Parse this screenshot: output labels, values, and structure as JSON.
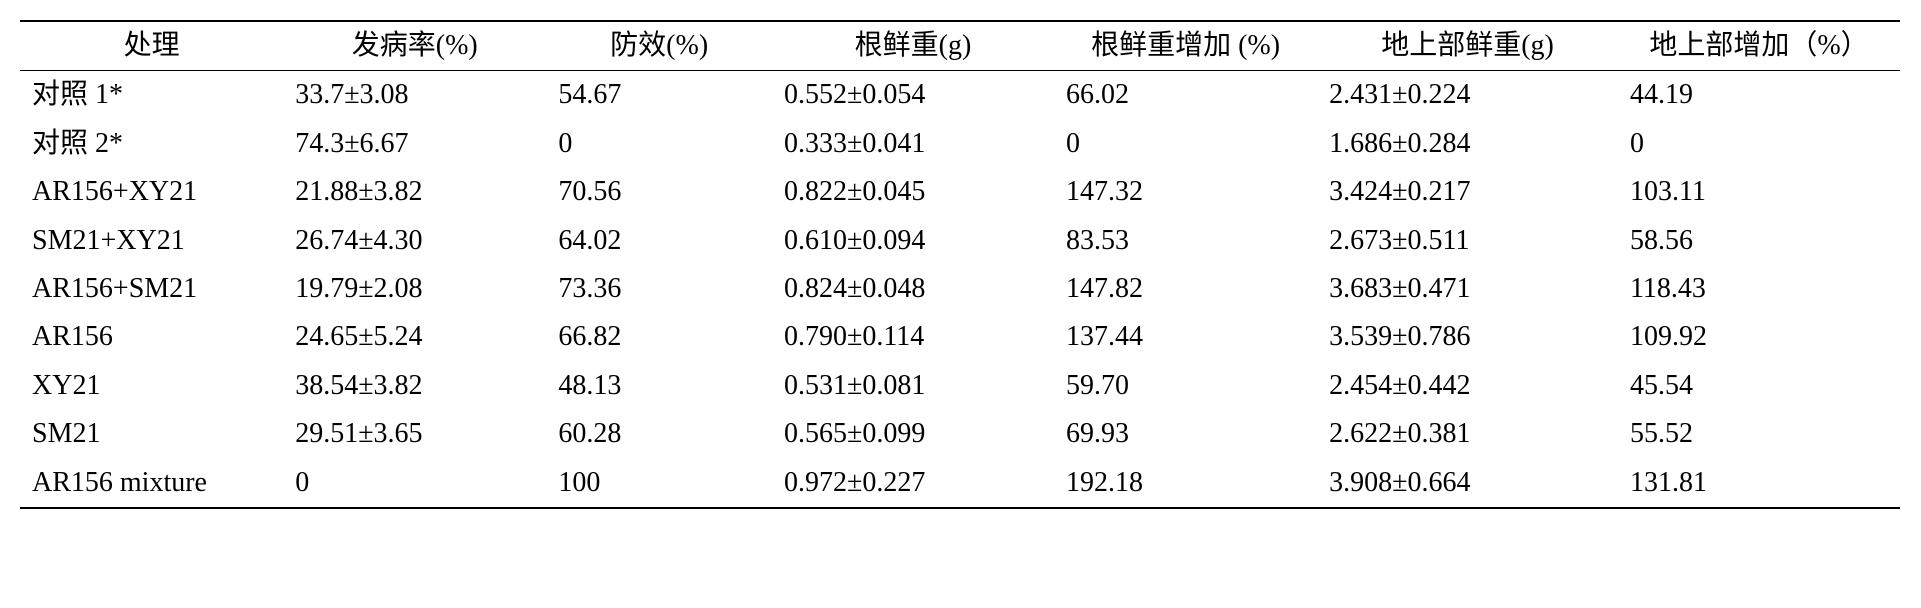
{
  "table": {
    "columns": [
      {
        "label": "处理",
        "align": "center"
      },
      {
        "label": "发病率(%)",
        "align": "center"
      },
      {
        "label": "防效(%)",
        "align": "center"
      },
      {
        "label": "根鲜重(g)",
        "align": "center"
      },
      {
        "label": "根鲜重增加 (%)",
        "align": "center"
      },
      {
        "label": "地上部鲜重(g)",
        "align": "center"
      },
      {
        "label": "地上部增加（%）",
        "align": "center"
      }
    ],
    "rows": [
      [
        "对照 1*",
        "33.7±3.08",
        "54.67",
        "0.552±0.054",
        "66.02",
        "2.431±0.224",
        "44.19"
      ],
      [
        "对照 2*",
        "74.3±6.67",
        "0",
        "0.333±0.041",
        "0",
        "1.686±0.284",
        "0"
      ],
      [
        "AR156+XY21",
        "21.88±3.82",
        "70.56",
        "0.822±0.045",
        "147.32",
        "3.424±0.217",
        "103.11"
      ],
      [
        "SM21+XY21",
        "26.74±4.30",
        "64.02",
        "0.610±0.094",
        "83.53",
        "2.673±0.511",
        "58.56"
      ],
      [
        "AR156+SM21",
        "19.79±2.08",
        "73.36",
        "0.824±0.048",
        "147.82",
        "3.683±0.471",
        "118.43"
      ],
      [
        "AR156",
        "24.65±5.24",
        "66.82",
        "0.790±0.114",
        "137.44",
        "3.539±0.786",
        "109.92"
      ],
      [
        "XY21",
        "38.54±3.82",
        "48.13",
        "0.531±0.081",
        "59.70",
        "2.454±0.442",
        "45.54"
      ],
      [
        "SM21",
        "29.51±3.65",
        "60.28",
        "0.565±0.099",
        "69.93",
        "2.622±0.381",
        "55.52"
      ],
      [
        "AR156 mixture",
        "0",
        "100",
        "0.972±0.227",
        "192.18",
        "3.908±0.664",
        "131.81"
      ]
    ],
    "styling": {
      "border_color": "#000000",
      "top_rule_width": 2,
      "mid_rule_width": 1.5,
      "bottom_rule_width": 2,
      "font_family": "Times New Roman / SimSun",
      "font_size_pt": 21,
      "text_color": "#000000",
      "background_color": "#ffffff",
      "column_widths_pct": [
        14,
        14,
        12,
        15,
        14,
        16,
        15
      ],
      "cell_align": "left",
      "header_align": "center"
    }
  }
}
